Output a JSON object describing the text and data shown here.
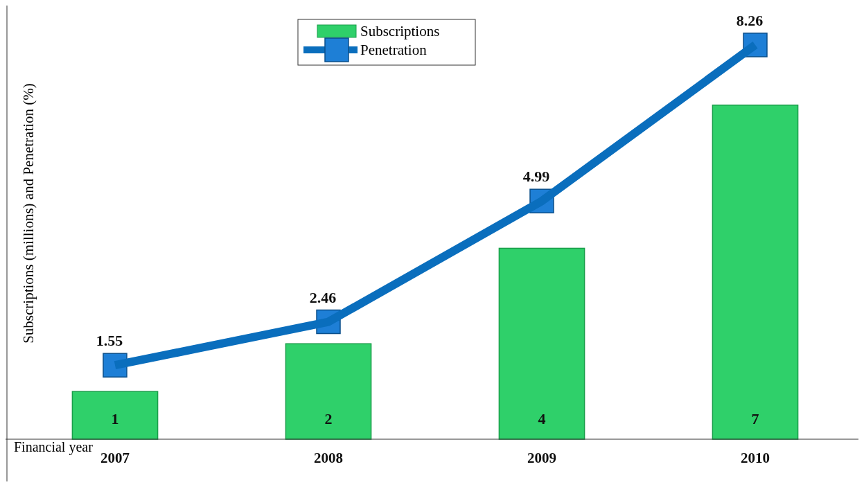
{
  "chart_data": {
    "type": "bar",
    "ylabel": "Subscriptions (millions) and Penetration (%)",
    "xlabel": "Financial year",
    "categories": [
      "2007",
      "2008",
      "2009",
      "2010"
    ],
    "series": [
      {
        "name": "Subscriptions",
        "color": "#2fd06a",
        "values": [
          1,
          2,
          4,
          7
        ]
      },
      {
        "name": "Penetration",
        "type": "line",
        "color": "#0a6ebd",
        "marker": "square",
        "values": [
          1.55,
          2.46,
          4.99,
          8.26
        ]
      }
    ],
    "data_labels": true,
    "legend": "top",
    "grid": false
  }
}
